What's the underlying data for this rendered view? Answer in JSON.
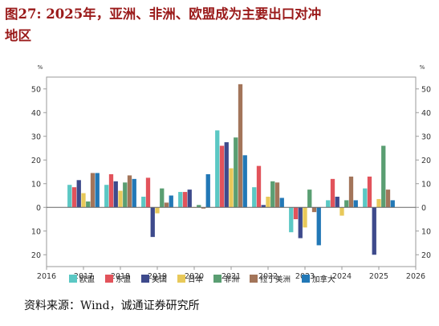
{
  "figure": {
    "title": "图27:  2025年，亚洲、非洲、欧盟成为主要出口对冲",
    "title_line2": "地区",
    "source": "资料来源：Wind，诚通证券研究所"
  },
  "chart_data": {
    "type": "bar",
    "title": "",
    "ylabel": "%",
    "y2label": "%",
    "ylim": [
      -25,
      55
    ],
    "yticks": [
      -20,
      -10,
      0,
      10,
      20,
      30,
      40,
      50
    ],
    "xlim": [
      2016,
      2026
    ],
    "xticks": [
      2016,
      2017,
      2018,
      2019,
      2020,
      2021,
      2022,
      2023,
      2024,
      2025,
      2026
    ],
    "categories": [
      "2017",
      "2018",
      "2019",
      "2020",
      "2021",
      "2022",
      "2023",
      "2024",
      "2025"
    ],
    "legend_position": "bottom",
    "grid": false,
    "series": [
      {
        "name": "欧盟",
        "color": "#5bc8c4",
        "values": [
          9.5,
          9.5,
          4.5,
          6.5,
          32.5,
          8.5,
          -10.5,
          3,
          8
        ]
      },
      {
        "name": "东盟",
        "color": "#e2535b",
        "values": [
          8.5,
          14,
          12.5,
          6.5,
          26,
          17.5,
          -5,
          12,
          13
        ]
      },
      {
        "name": "美国",
        "color": "#3e4a8c",
        "values": [
          11.5,
          11,
          -12.5,
          7.5,
          27.5,
          1,
          -13,
          4.5,
          -20
        ]
      },
      {
        "name": "日本",
        "color": "#e8c95a",
        "values": [
          6,
          7,
          -2.5,
          0,
          16.5,
          4.5,
          -8.5,
          -3.5,
          3.5
        ]
      },
      {
        "name": "非洲",
        "color": "#5a9e72",
        "values": [
          2.5,
          10.5,
          8,
          1,
          29.5,
          11,
          7.5,
          3,
          26
        ]
      },
      {
        "name": "拉丁美洲",
        "color": "#a3755a",
        "values": [
          14.5,
          13.5,
          2,
          -0.5,
          52,
          10.5,
          -2,
          13,
          7.5
        ]
      },
      {
        "name": "加拿大",
        "color": "#2278b6",
        "values": [
          14.5,
          12,
          5,
          14,
          22,
          4,
          -16,
          3,
          3
        ]
      }
    ]
  }
}
